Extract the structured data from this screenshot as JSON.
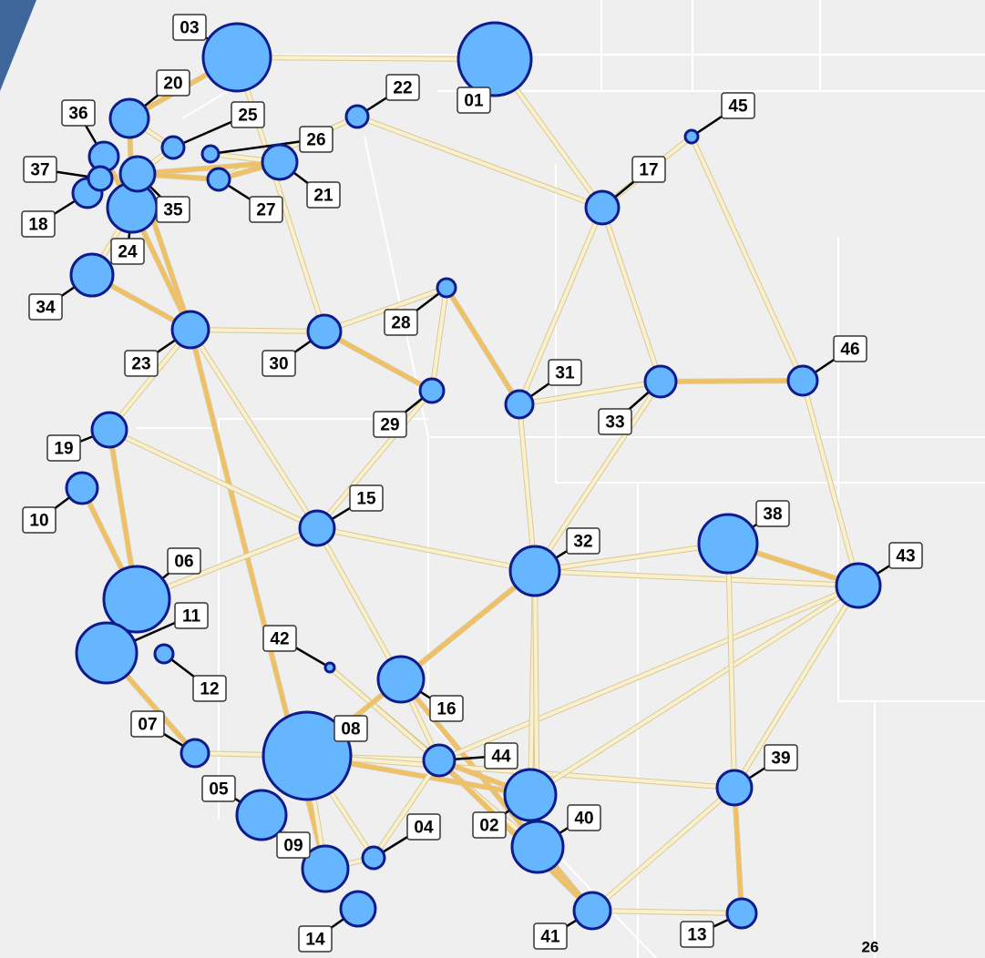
{
  "nodes": [
    {
      "label": "01"
    },
    {
      "label": "02"
    },
    {
      "label": "03"
    },
    {
      "label": "04"
    },
    {
      "label": "05"
    },
    {
      "label": "06"
    },
    {
      "label": "07"
    },
    {
      "label": "08"
    },
    {
      "label": "09"
    },
    {
      "label": "10"
    },
    {
      "label": "11"
    },
    {
      "label": "12"
    },
    {
      "label": "13"
    },
    {
      "label": "14"
    },
    {
      "label": "15"
    },
    {
      "label": "16"
    },
    {
      "label": "17"
    },
    {
      "label": "18"
    },
    {
      "label": "19"
    },
    {
      "label": "20"
    },
    {
      "label": "21"
    },
    {
      "label": "22"
    },
    {
      "label": "23"
    },
    {
      "label": "24"
    },
    {
      "label": "25"
    },
    {
      "label": "26"
    },
    {
      "label": "27"
    },
    {
      "label": "28"
    },
    {
      "label": "29"
    },
    {
      "label": "30"
    },
    {
      "label": "31"
    },
    {
      "label": "32"
    },
    {
      "label": "33"
    },
    {
      "label": "34"
    },
    {
      "label": "35"
    },
    {
      "label": "36"
    },
    {
      "label": "37"
    },
    {
      "label": "38"
    },
    {
      "label": "39"
    },
    {
      "label": "40"
    },
    {
      "label": "41"
    },
    {
      "label": "42"
    },
    {
      "label": "43"
    },
    {
      "label": "44"
    },
    {
      "label": "45"
    },
    {
      "label": "46"
    }
  ],
  "page_number": "26"
}
